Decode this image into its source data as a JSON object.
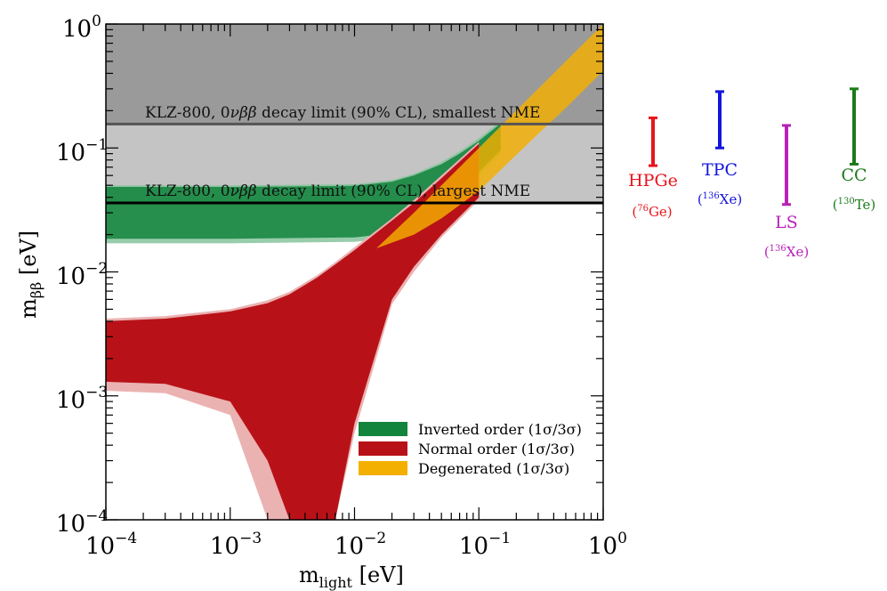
{
  "chart_data": {
    "type": "area",
    "xlabel": "m_light [eV]",
    "ylabel": "m_ββ [eV]",
    "xlabel_main": "m",
    "xlabel_sub": "light",
    "xlabel_unit": " [eV]",
    "ylabel_main": "m",
    "ylabel_sub": "ββ",
    "ylabel_unit": " [eV]",
    "xscale": "log",
    "yscale": "log",
    "xlim": [
      0.0001,
      1
    ],
    "ylim": [
      0.0001,
      1
    ],
    "x_ticks": [
      {
        "value": 0.0001,
        "base": "10",
        "exp": "−4"
      },
      {
        "value": 0.001,
        "base": "10",
        "exp": "−3"
      },
      {
        "value": 0.01,
        "base": "10",
        "exp": "−2"
      },
      {
        "value": 0.1,
        "base": "10",
        "exp": "−1"
      },
      {
        "value": 1,
        "base": "10",
        "exp": "0"
      }
    ],
    "y_ticks": [
      {
        "value": 0.0001,
        "base": "10",
        "exp": "−4"
      },
      {
        "value": 0.001,
        "base": "10",
        "exp": "−3"
      },
      {
        "value": 0.01,
        "base": "10",
        "exp": "−2"
      },
      {
        "value": 0.1,
        "base": "10",
        "exp": "−1"
      },
      {
        "value": 1,
        "base": "10",
        "exp": "0"
      }
    ],
    "limits": [
      {
        "name": "KLZ-800, 0νββ decay limit (90% CL), smallest NME",
        "y": 0.156,
        "fill": "#9a9a9a"
      },
      {
        "name": "KLZ-800, 0νββ decay limit (90% CL), largest NME",
        "y": 0.036,
        "fill": "#c4c4c4"
      }
    ],
    "limit_labels": [
      {
        "prefix": "KLZ-800, 0",
        "nu": "ν",
        "bb": "ββ",
        "suffix": " decay limit (90% CL), smallest NME"
      },
      {
        "prefix": "KLZ-800, 0",
        "nu": "ν",
        "bb": "ββ",
        "suffix": " decay limit (90% CL), largest NME"
      }
    ],
    "series": [
      {
        "name": "Inverted order (1σ/3σ)",
        "color": "#12843c",
        "light": "#86c49c",
        "x": [
          0.0001,
          0.001,
          0.01,
          0.02,
          0.03,
          0.05,
          0.07,
          0.1,
          0.15
        ],
        "one_sigma_low": [
          0.0185,
          0.0185,
          0.019,
          0.0205,
          0.0235,
          0.032,
          0.045,
          0.064,
          0.096
        ],
        "one_sigma_high": [
          0.0485,
          0.0485,
          0.0495,
          0.0535,
          0.06,
          0.074,
          0.09,
          0.114,
          0.158
        ],
        "three_sigma_low": [
          0.017,
          0.017,
          0.0175,
          0.019,
          0.022,
          0.03,
          0.042,
          0.06,
          0.09
        ],
        "three_sigma_high": [
          0.05,
          0.05,
          0.051,
          0.055,
          0.062,
          0.077,
          0.094,
          0.12,
          0.165
        ]
      },
      {
        "name": "Normal order (1σ/3σ)",
        "color": "#b81218",
        "light": "#ebb2b2",
        "x": [
          0.0001,
          0.0003,
          0.001,
          0.002,
          0.003,
          0.005,
          0.007,
          0.01,
          0.02,
          0.03,
          0.05,
          0.1
        ],
        "one_sigma_low": [
          0.0013,
          0.00125,
          0.0009,
          0.0003,
          0.0001,
          0.0001,
          0.0001,
          0.0006,
          0.006,
          0.011,
          0.02,
          0.04
        ],
        "one_sigma_high": [
          0.004,
          0.0042,
          0.0048,
          0.0056,
          0.0066,
          0.009,
          0.0115,
          0.015,
          0.026,
          0.036,
          0.057,
          0.108
        ],
        "three_sigma_low": [
          0.0011,
          0.00105,
          0.0007,
          0.0001,
          0.0001,
          0.0001,
          0.0001,
          0.0005,
          0.0055,
          0.01,
          0.019,
          0.038
        ],
        "three_sigma_high": [
          0.0042,
          0.0044,
          0.005,
          0.0059,
          0.0069,
          0.0094,
          0.012,
          0.0158,
          0.027,
          0.038,
          0.06,
          0.112
        ]
      },
      {
        "name": "Degenerated (1σ/3σ)",
        "color": "#f4b000",
        "light": "#f7e07e",
        "x": [
          0.015,
          0.03,
          0.05,
          0.1,
          0.2,
          0.3,
          0.5,
          1.0
        ],
        "one_sigma_low": [
          0.0155,
          0.02,
          0.027,
          0.045,
          0.088,
          0.13,
          0.21,
          0.42
        ],
        "one_sigma_high": [
          0.0155,
          0.03,
          0.05,
          0.1,
          0.2,
          0.3,
          0.5,
          1.0
        ]
      }
    ],
    "legend": {
      "placement": "bottom-right",
      "items": [
        {
          "label": "Inverted order (1σ/3σ)",
          "color": "#12843c"
        },
        {
          "label": "Normal order (1σ/3σ)",
          "color": "#b81218"
        },
        {
          "label": "Degenerated (1σ/3σ)",
          "color": "#f4b000"
        }
      ]
    },
    "sensitivity_ranges": [
      {
        "name": "HPGe",
        "isotope_mass": "76",
        "isotope_element": "Ge",
        "color": "#e8141c",
        "low": 0.072,
        "high": 0.175
      },
      {
        "name": "TPC",
        "isotope_mass": "136",
        "isotope_element": "Xe",
        "color": "#1414dc",
        "low": 0.1,
        "high": 0.285
      },
      {
        "name": "LS",
        "isotope_mass": "136",
        "isotope_element": "Xe",
        "color": "#b820b8",
        "low": 0.035,
        "high": 0.152
      },
      {
        "name": "CC",
        "isotope_mass": "130",
        "isotope_element": "Te",
        "color": "#1b7a1b",
        "low": 0.074,
        "high": 0.3
      }
    ]
  }
}
